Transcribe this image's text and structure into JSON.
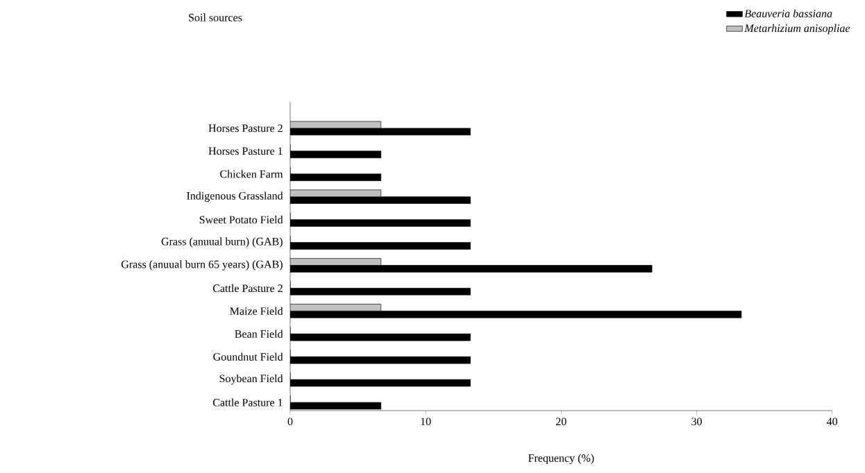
{
  "chart_data": {
    "type": "bar",
    "orientation": "horizontal",
    "annotations": [
      "Soil sources"
    ],
    "xlabel": "Frequency (%)",
    "categories": [
      "Horses Pasture 2",
      "Horses Pasture 1",
      "Chicken Farm",
      "Indigenous Grassland",
      "Sweet Potato Field",
      "Grass (anuual burn) (GAB)",
      "Grass (anuual burn 65 years) (GAB)",
      "Cattle Pasture 2",
      "Maize Field",
      "Bean Field",
      "Goundnut Field",
      "Soybean Field",
      "Cattle Pasture 1"
    ],
    "series": [
      {
        "name": "Beauveria bassiana",
        "color": "#000000",
        "values": [
          13.3,
          6.7,
          6.7,
          13.3,
          13.3,
          13.3,
          26.7,
          13.3,
          33.3,
          13.3,
          13.3,
          13.3,
          6.7
        ]
      },
      {
        "name": "Metarhizium anisopliae",
        "color": "#c0c0c0",
        "values": [
          6.7,
          0,
          0,
          6.7,
          0,
          0,
          6.7,
          0,
          6.7,
          0,
          0,
          0,
          0
        ]
      }
    ],
    "xlim": [
      0,
      40
    ],
    "xticks": [
      0,
      10,
      20,
      30,
      40
    ],
    "legend": "top right",
    "grid": false
  }
}
